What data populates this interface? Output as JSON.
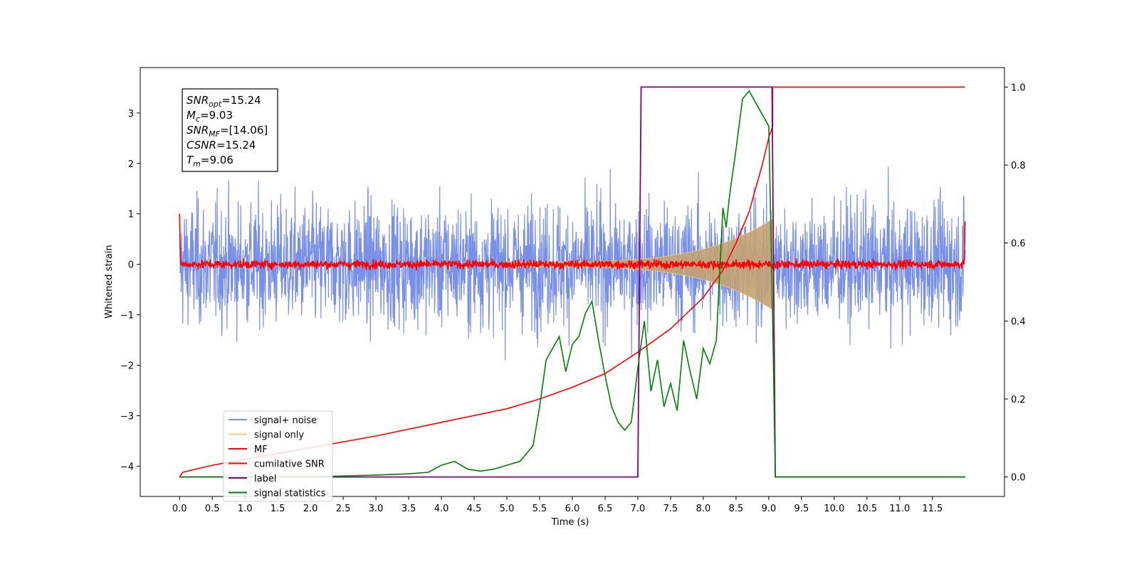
{
  "chart_data": {
    "type": "line",
    "title": "",
    "xlabel": "Time (s)",
    "ylabel": "Whitened strain",
    "xlim": [
      -0.6,
      12.6
    ],
    "ylim": [
      -4.6,
      3.9
    ],
    "y2lim": [
      -0.05,
      1.05
    ],
    "grid": false,
    "legend_position": "lower-left",
    "x_ticks": [
      "0.0",
      "0.5",
      "1.0",
      "1.5",
      "2.0",
      "2.5",
      "3.0",
      "3.5",
      "4.0",
      "4.5",
      "5.0",
      "5.5",
      "6.0",
      "6.5",
      "7.0",
      "7.5",
      "8.0",
      "8.5",
      "9.0",
      "9.5",
      "10.0",
      "10.5",
      "11.0",
      "11.5"
    ],
    "y_ticks": [
      "-4",
      "-3",
      "-2",
      "-1",
      "0",
      "1",
      "2",
      "3"
    ],
    "y2_ticks": [
      "0.0",
      "0.2",
      "0.4",
      "0.6",
      "0.8",
      "1.0"
    ],
    "annotation": [
      {
        "sym": "SNR",
        "sub": "opt",
        "value": "=15.24"
      },
      {
        "sym": "M",
        "sub": "c",
        "value": "=9.03"
      },
      {
        "sym": "SNR",
        "sub": "MF",
        "value": "=[14.06]"
      },
      {
        "sym": "CSNR",
        "sub": "",
        "value": "=15.24"
      },
      {
        "sym": "T",
        "sub": "m",
        "value": "=9.06"
      }
    ],
    "series": [
      {
        "name": "signal+ noise",
        "color": "#7890e8",
        "axis": "left",
        "description_range": [
          -1.5,
          1.5
        ],
        "t_range": [
          0,
          12
        ]
      },
      {
        "name": "signal only",
        "color": "#f5c97a",
        "axis": "left",
        "chirp": {
          "t_start": 5.0,
          "t_merge": 9.06,
          "amp_start": 0.05,
          "amp_end": 0.9
        }
      },
      {
        "name": "MF",
        "color": "#ff0000",
        "axis": "left",
        "noise_amp": 0.06,
        "t_range": [
          0,
          12
        ]
      },
      {
        "name": "cumilative SNR",
        "color": "#ff0000",
        "axis": "right",
        "x": [
          0.0,
          0.05,
          0.5,
          1.0,
          2.0,
          3.0,
          4.0,
          5.0,
          5.5,
          6.0,
          6.5,
          7.0,
          7.5,
          8.0,
          8.3,
          8.5,
          8.7,
          8.9,
          9.0,
          9.06,
          9.06,
          12.0
        ],
        "y": [
          0.0,
          0.012,
          0.03,
          0.045,
          0.075,
          0.105,
          0.14,
          0.175,
          0.2,
          0.23,
          0.265,
          0.32,
          0.38,
          0.46,
          0.53,
          0.6,
          0.68,
          0.8,
          0.87,
          0.9,
          1.0,
          1.0
        ]
      },
      {
        "name": "label",
        "color": "#800080",
        "axis": "right",
        "x": [
          0.0,
          7.0,
          7.05,
          9.05,
          9.1,
          12.0
        ],
        "y": [
          0.0,
          0.0,
          1.0,
          1.0,
          0.0,
          0.0
        ]
      },
      {
        "name": "signal statistics",
        "color": "#008000",
        "axis": "right",
        "x": [
          0.0,
          1.0,
          2.0,
          3.0,
          3.5,
          3.8,
          4.0,
          4.2,
          4.4,
          4.6,
          4.8,
          5.0,
          5.2,
          5.4,
          5.5,
          5.6,
          5.7,
          5.8,
          5.9,
          6.0,
          6.1,
          6.2,
          6.3,
          6.4,
          6.5,
          6.6,
          6.7,
          6.8,
          6.9,
          7.0,
          7.1,
          7.2,
          7.3,
          7.4,
          7.5,
          7.6,
          7.7,
          7.8,
          7.9,
          8.0,
          8.1,
          8.2,
          8.3,
          8.35,
          8.4,
          8.5,
          8.6,
          8.7,
          8.8,
          8.9,
          9.0,
          9.05,
          9.1,
          12.0
        ],
        "y": [
          0.0,
          0.0,
          0.0,
          0.005,
          0.008,
          0.012,
          0.03,
          0.04,
          0.02,
          0.015,
          0.02,
          0.03,
          0.04,
          0.08,
          0.18,
          0.3,
          0.33,
          0.36,
          0.27,
          0.34,
          0.36,
          0.42,
          0.45,
          0.35,
          0.26,
          0.18,
          0.14,
          0.12,
          0.14,
          0.28,
          0.4,
          0.22,
          0.3,
          0.18,
          0.24,
          0.17,
          0.35,
          0.27,
          0.2,
          0.33,
          0.29,
          0.35,
          0.69,
          0.64,
          0.72,
          0.84,
          0.97,
          0.99,
          0.96,
          0.93,
          0.9,
          0.5,
          0.0,
          0.0
        ]
      }
    ]
  }
}
